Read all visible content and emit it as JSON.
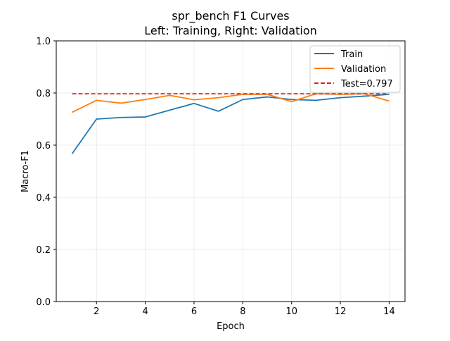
{
  "chart_data": {
    "type": "line",
    "title": "spr_bench F1 Curves",
    "subtitle": "Left: Training, Right: Validation",
    "xlabel": "Epoch",
    "ylabel": "Macro-F1",
    "xlim": [
      0.35,
      14.65
    ],
    "ylim": [
      0.0,
      1.0
    ],
    "xticks": [
      2,
      4,
      6,
      8,
      10,
      12,
      14
    ],
    "yticks": [
      0.0,
      0.2,
      0.4,
      0.6,
      0.8,
      1.0
    ],
    "xtick_labels": [
      "2",
      "4",
      "6",
      "8",
      "10",
      "12",
      "14"
    ],
    "ytick_labels": [
      "0.0",
      "0.2",
      "0.4",
      "0.6",
      "0.8",
      "1.0"
    ],
    "grid": true,
    "legend_position": "top-right",
    "series": [
      {
        "name": "Train",
        "color": "#1f77b4",
        "style": "solid",
        "x": [
          1,
          2,
          3,
          4,
          5,
          6,
          7,
          8,
          9,
          10,
          11,
          12,
          13,
          14
        ],
        "values": [
          0.567,
          0.7,
          0.706,
          0.708,
          0.734,
          0.76,
          0.73,
          0.775,
          0.785,
          0.775,
          0.772,
          0.782,
          0.788,
          0.795
        ]
      },
      {
        "name": "Validation",
        "color": "#ff7f0e",
        "style": "solid",
        "x": [
          1,
          2,
          3,
          4,
          5,
          6,
          7,
          8,
          9,
          10,
          11,
          12,
          13,
          14
        ],
        "values": [
          0.726,
          0.772,
          0.761,
          0.775,
          0.791,
          0.774,
          0.782,
          0.795,
          0.795,
          0.767,
          0.797,
          0.795,
          0.797,
          0.769
        ]
      },
      {
        "name": "Test=0.797",
        "color": "#d62728",
        "style": "dashed",
        "x": [
          1,
          14
        ],
        "values": [
          0.797,
          0.797
        ]
      }
    ]
  }
}
